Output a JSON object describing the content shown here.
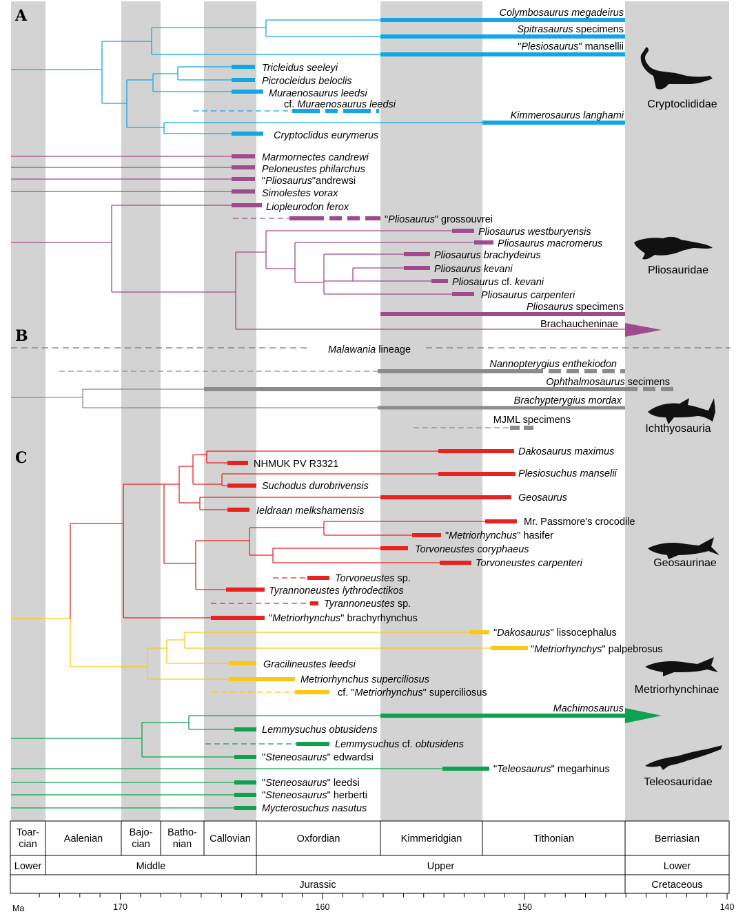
{
  "panels": {
    "a": "A",
    "b": "B",
    "c": "C"
  },
  "colors": {
    "cryptoclidid": "#12a6e5",
    "pliosaurid": "#a0498f",
    "ichthyo": "#8b8b8b",
    "ichthyo_line": "#8c8c8c",
    "geosaur": "#e8231f",
    "metrio": "#fcc813",
    "teleo": "#0ea150",
    "band": "#d3d3d3"
  },
  "taxa": {
    "colymbosaurus": {
      "genus": "Colymbosaurus megadeirus",
      "rest": ""
    },
    "spitrasaurus": {
      "genus": "Spitrasaurus",
      "rest": " specimens"
    },
    "plesiosaurus": {
      "q": "\"",
      "genus": "Plesiosaurus",
      "rest": "\" mansellii"
    },
    "tricleidus": "Tricleidus seeleyi",
    "picrocleidus": "Picrocleidus beloclis",
    "muraenosaurus": "Muraenosaurus leedsi",
    "cf_muraenosaurus": {
      "pre": "cf. ",
      "genus": "Muraenosaurus leedsi"
    },
    "kimmerosaurus": "Kimmerosaurus langhami",
    "cryptoclidus": "Cryptoclidus eurymerus",
    "marmornectes": "Marmornectes candrewi",
    "peloneustes": "Peloneustes philarchus",
    "pliosaurus_andrewsi": {
      "q": "\"",
      "genus": "Pliosaurus",
      "rest": "\"andrewsi"
    },
    "simolestes": "Simolestes vorax",
    "liopleurodon": "Liopleurodon ferox",
    "grossouvrei": {
      "q": "\"",
      "genus": "Pliosaurus",
      "rest": "\" grossouvrei"
    },
    "westburyensis": "Pliosaurus westburyensis",
    "macromerus": "Pliosaurus macromerus",
    "brachydeirus": "Pliosaurus brachydeirus",
    "kevani": "Pliosaurus kevani",
    "cf_kevani": {
      "genus": "Pliosaurus",
      "mid": " cf. ",
      "rest": "kevani"
    },
    "carpenteri": "Pliosaurus carpenteri",
    "pliosaurus_specimens": {
      "genus": "Pliosaurus",
      "rest": " specimens"
    },
    "brachaucheninae": "Brachaucheninae",
    "malawania": {
      "genus": "Malawania",
      "rest": " lineage"
    },
    "nannopterygius": "Nannopterygius enthekiodon",
    "ophthalmosaurus": {
      "genus": "Ophthalmosaurus",
      "rest": " secimens"
    },
    "brachypterygius": "Brachypterygius mordax",
    "mjml": "MJML specimens",
    "dakosaurus": "Dakosaurus maximus",
    "nhmuk": "NHMUK PV R3321",
    "plesiosuchus": "Plesiosuchus manselii",
    "suchodus": "Suchodus durobrivensis",
    "geosaurus": "Geosaurus",
    "ieldraan": "Ieldraan melkshamensis",
    "passmore": "Mr. Passmore's crocodile",
    "hasifer": {
      "q": "\"",
      "genus": "Metriorhynchus",
      "rest": "\" hasifer"
    },
    "coryphaeus": "Torvoneustes coryphaeus",
    "torv_carpenteri": "Torvoneustes carpenteri",
    "torv_sp": {
      "genus": "Torvoneustes",
      "rest": " sp."
    },
    "lythrodectikos": "Tyrannoneustes lythrodectikos",
    "tyr_sp": {
      "genus": "Tyrannoneustes",
      "rest": " sp."
    },
    "brachyrhynchus": {
      "q": "\"",
      "genus": "Metriorhynchus",
      "rest": "\" brachyrhynchus"
    },
    "lissocephalus": {
      "q": "\"",
      "genus": "Dakosaurus",
      "rest": "\" lissocephalus"
    },
    "palpebrosus": {
      "q": "\"",
      "genus": "Metriorhynchys",
      "rest": "\" palpebrosus"
    },
    "gracilineustes": "Gracilineustes leedsi",
    "superciliosus": "Metriorhynchus superciliosus",
    "cf_superciliosus": {
      "pre": "cf. \"",
      "genus": "Metriorhynchus",
      "rest": "\" superciliosus"
    },
    "machimosaurus": "Machimosaurus",
    "lemmysuchus": "Lemmysuchus obtusidens",
    "lemm_cf": {
      "genus": "Lemmysuchus",
      "mid": " cf. ",
      "rest": "obtusidens"
    },
    "edwardsi": {
      "q": "\"",
      "genus": "Steneosaurus",
      "rest": "\" edwardsi"
    },
    "megarhinus": {
      "q": "\"",
      "genus": "Teleosaurus",
      "rest": "\" megarhinus"
    },
    "st_leedsi": {
      "q": "\"",
      "genus": "Steneosaurus",
      "rest": "\" leedsi"
    },
    "herberti": {
      "q": "\"",
      "genus": "Steneosaurus",
      "rest": "\" herberti"
    },
    "mycterosuchus": "Mycterosuchus nasutus"
  },
  "groups": {
    "cryptoclididae": "Cryptoclididae",
    "pliosauridae": "Pliosauridae",
    "ichthyosauria": "Ichthyosauria",
    "geosaurinae": "Geosaurinae",
    "metriorhynchinae": "Metriorhynchinae",
    "teleosauridae": "Teleosauridae"
  },
  "timescale": {
    "stages": [
      "Toar-\ncian",
      "Aalenian",
      "Bajo-\ncian",
      "Batho-\nnian",
      "Callovian",
      "Oxfordian",
      "Kimmeridgian",
      "Tithonian",
      "Berriasian"
    ],
    "series": [
      "Lower",
      "Middle",
      "Upper",
      "Lower"
    ],
    "systems": [
      "Jurassic",
      "Cretaceous"
    ],
    "unit": "Ma",
    "ticks": [
      "170",
      "160",
      "150",
      "140"
    ]
  }
}
